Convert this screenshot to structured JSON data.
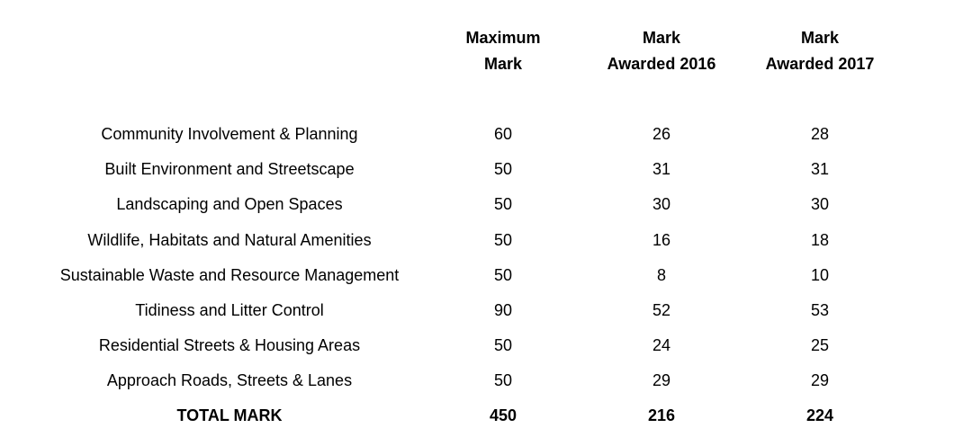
{
  "headers": {
    "max_mark": [
      "Maximum",
      "Mark"
    ],
    "mark_2016": [
      "Mark",
      "Awarded 2016"
    ],
    "mark_2017": [
      "Mark",
      "Awarded 2017"
    ]
  },
  "rows": [
    {
      "category": "Community Involvement & Planning",
      "max": "60",
      "y2016": "26",
      "y2017": "28"
    },
    {
      "category": "Built Environment and Streetscape",
      "max": "50",
      "y2016": "31",
      "y2017": "31"
    },
    {
      "category": "Landscaping and Open Spaces",
      "max": "50",
      "y2016": "30",
      "y2017": "30"
    },
    {
      "category": "Wildlife, Habitats and Natural Amenities",
      "max": "50",
      "y2016": "16",
      "y2017": "18"
    },
    {
      "category": "Sustainable Waste and Resource Management",
      "max": "50",
      "y2016": "8",
      "y2017": "10"
    },
    {
      "category": "Tidiness and Litter Control",
      "max": "90",
      "y2016": "52",
      "y2017": "53"
    },
    {
      "category": "Residential Streets & Housing Areas",
      "max": "50",
      "y2016": "24",
      "y2017": "25"
    },
    {
      "category": "Approach Roads, Streets & Lanes",
      "max": "50",
      "y2016": "29",
      "y2017": "29"
    }
  ],
  "total": {
    "label": "TOTAL MARK",
    "max": "450",
    "y2016": "216",
    "y2017": "224"
  }
}
